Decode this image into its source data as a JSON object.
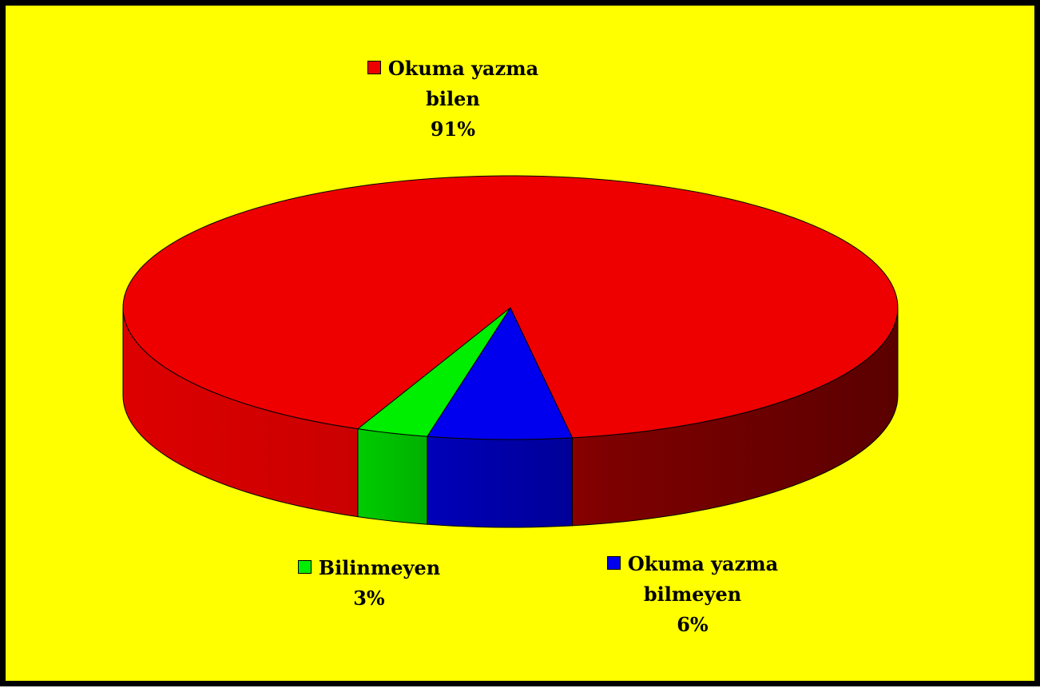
{
  "chart_data": {
    "type": "pie",
    "style": "3d",
    "title": "",
    "slices": [
      {
        "label_lines": [
          "Okuma yazma",
          "bilen"
        ],
        "value": 91,
        "display": "91%",
        "color": "#ee0000"
      },
      {
        "label_lines": [
          "Bilinmeyen"
        ],
        "value": 3,
        "display": "3%",
        "color": "#00ee00"
      },
      {
        "label_lines": [
          "Okuma yazma",
          "bilmeyen"
        ],
        "value": 6,
        "display": "6%",
        "color": "#0000ee"
      }
    ],
    "legend": "none",
    "background_color": "#ffff00",
    "border_color": "#000000"
  }
}
